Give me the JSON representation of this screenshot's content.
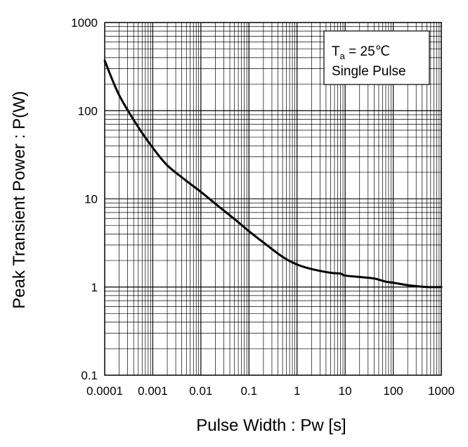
{
  "chart_data": {
    "type": "line",
    "xlabel": "Pulse Width : Pw [s]",
    "ylabel": "Peak Transient Power : P(W)",
    "x_scale": "log",
    "y_scale": "log",
    "xlim": [
      0.0001,
      1000
    ],
    "ylim": [
      0.1,
      1000
    ],
    "x_ticks": [
      {
        "value": 0.0001,
        "label": "0.0001"
      },
      {
        "value": 0.001,
        "label": "0.001"
      },
      {
        "value": 0.01,
        "label": "0.01"
      },
      {
        "value": 0.1,
        "label": "0.1"
      },
      {
        "value": 1,
        "label": "1"
      },
      {
        "value": 10,
        "label": "10"
      },
      {
        "value": 100,
        "label": "100"
      },
      {
        "value": 1000,
        "label": "1000"
      }
    ],
    "y_ticks": [
      {
        "value": 0.1,
        "label": "0.1"
      },
      {
        "value": 1,
        "label": "1"
      },
      {
        "value": 10,
        "label": "10"
      },
      {
        "value": 100,
        "label": "100"
      },
      {
        "value": 1000,
        "label": "1000"
      }
    ],
    "grid": true,
    "legend_position": "top-right",
    "annotation": {
      "line1_symbol": "T",
      "line1_subscript": "a",
      "line1_value": " = 25℃",
      "line2": "Single Pulse"
    },
    "series": [
      {
        "color": "#000000",
        "points": [
          {
            "x": 0.0001,
            "y": 370
          },
          {
            "x": 0.0002,
            "y": 150
          },
          {
            "x": 0.0005,
            "y": 65
          },
          {
            "x": 0.001,
            "y": 38
          },
          {
            "x": 0.002,
            "y": 24
          },
          {
            "x": 0.005,
            "y": 16
          },
          {
            "x": 0.01,
            "y": 12
          },
          {
            "x": 0.02,
            "y": 8.8
          },
          {
            "x": 0.05,
            "y": 5.9
          },
          {
            "x": 0.1,
            "y": 4.3
          },
          {
            "x": 0.2,
            "y": 3.2
          },
          {
            "x": 0.5,
            "y": 2.2
          },
          {
            "x": 1,
            "y": 1.8
          },
          {
            "x": 2,
            "y": 1.6
          },
          {
            "x": 5,
            "y": 1.45
          },
          {
            "x": 8,
            "y": 1.42
          },
          {
            "x": 10,
            "y": 1.35
          },
          {
            "x": 20,
            "y": 1.3
          },
          {
            "x": 40,
            "y": 1.25
          },
          {
            "x": 70,
            "y": 1.15
          },
          {
            "x": 100,
            "y": 1.12
          },
          {
            "x": 200,
            "y": 1.05
          },
          {
            "x": 500,
            "y": 1.0
          },
          {
            "x": 1000,
            "y": 1.0
          }
        ]
      }
    ]
  }
}
